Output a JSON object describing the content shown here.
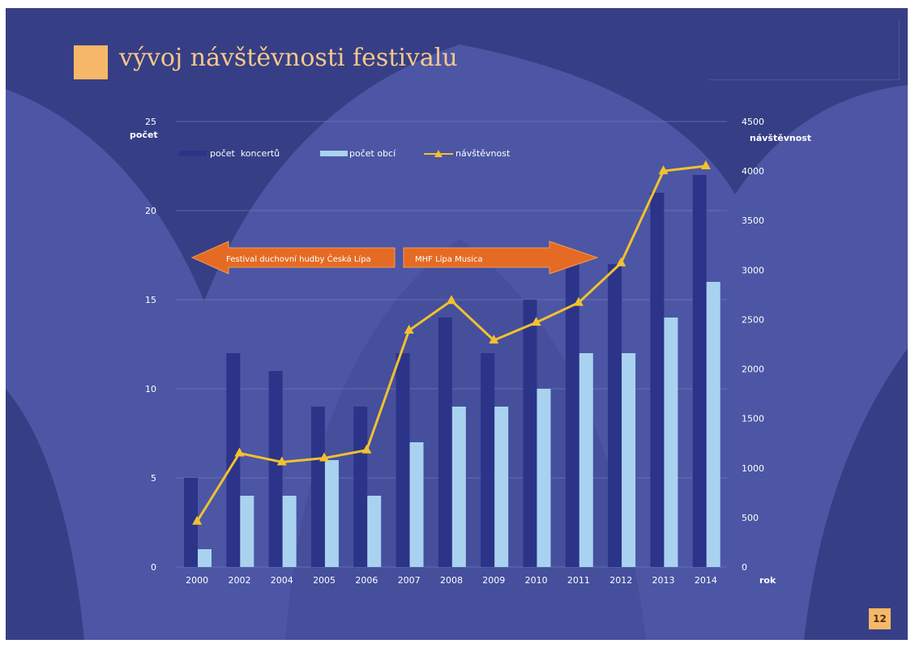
{
  "slide": {
    "title": "vývoj návštěvnosti festivalu",
    "page_number": "12",
    "colors": {
      "background": "#363f86",
      "accent": "#f6b868",
      "bars_koncerty": "#2b3488",
      "bars_obce": "#a9d2f0",
      "line_navstevnost": "#f2c12e",
      "arrow": "#e56b24"
    }
  },
  "chart_data": {
    "type": "bar",
    "categories": [
      "2000",
      "2002",
      "2004",
      "2005",
      "2006",
      "2007",
      "2008",
      "2009",
      "2010",
      "2011",
      "2012",
      "2013",
      "2014"
    ],
    "series": [
      {
        "name": "počet  koncertů",
        "axis": "left",
        "type": "bar",
        "values": [
          5,
          12,
          11,
          9,
          9,
          12,
          14,
          12,
          15,
          17,
          17,
          21,
          22
        ]
      },
      {
        "name": "počet obcí",
        "axis": "left",
        "type": "bar",
        "values": [
          1,
          4,
          4,
          6,
          4,
          7,
          9,
          9,
          10,
          12,
          12,
          14,
          16
        ]
      },
      {
        "name": "návštěvnost",
        "axis": "right",
        "type": "line",
        "marker": "triangle",
        "values": [
          460,
          1150,
          1060,
          1100,
          1180,
          2390,
          2690,
          2290,
          2470,
          2670,
          3070,
          4000,
          4050
        ]
      }
    ],
    "ylabel": "počet",
    "y2label": "návštěvnost",
    "xlabel": "rok",
    "ylim": [
      0,
      25
    ],
    "y2lim": [
      0,
      4500
    ],
    "yticks": [
      "0",
      "5",
      "10",
      "15",
      "20",
      "25"
    ],
    "y2ticks": [
      "0",
      "500",
      "1000",
      "1500",
      "2000",
      "2500",
      "3000",
      "3500",
      "4000",
      "4500"
    ],
    "grid": true,
    "legend_position": "top-left",
    "annotations": [
      {
        "text": "Festival duchovní hudby Česká Lípa",
        "direction": "left"
      },
      {
        "text": "MHF Lípa Musica",
        "direction": "right"
      }
    ]
  }
}
